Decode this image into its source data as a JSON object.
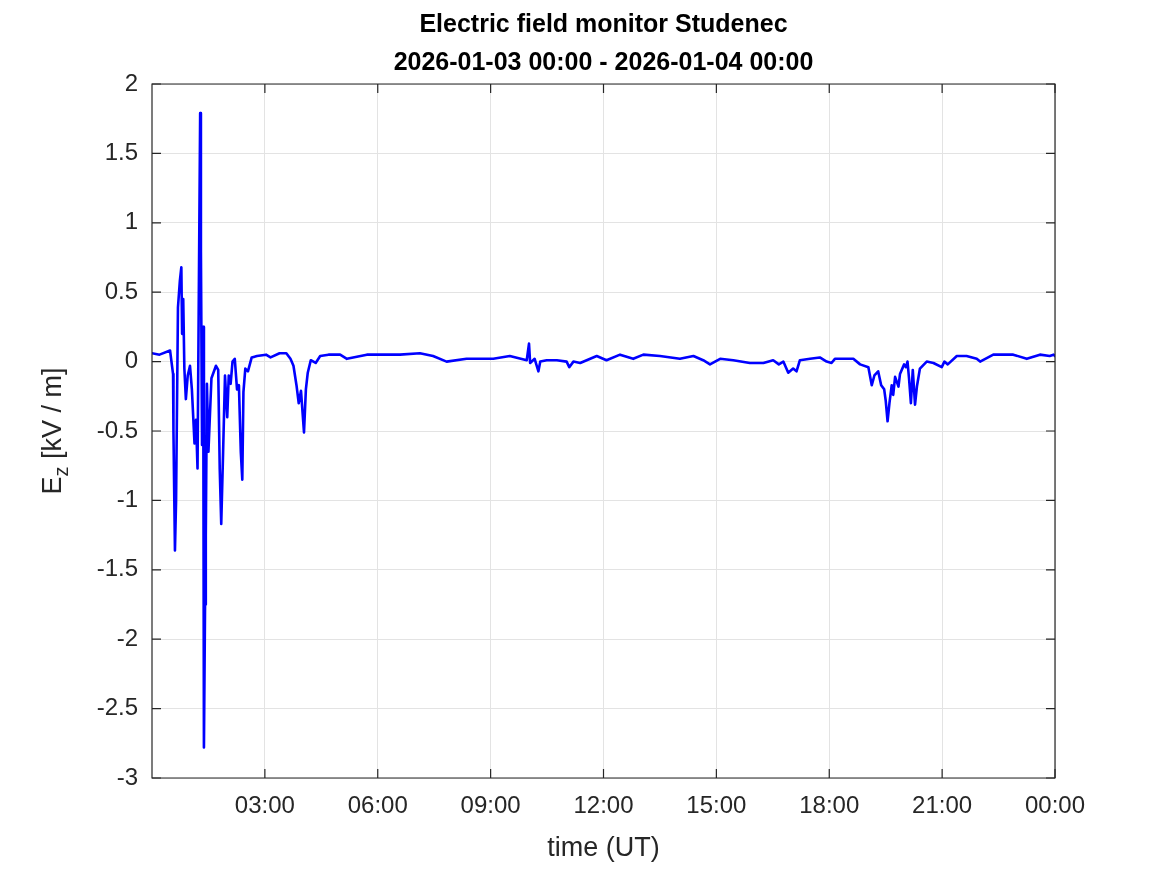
{
  "chart_data": {
    "type": "line",
    "title": "Electric field monitor Studenec",
    "subtitle": "2026-01-03 00:00 - 2026-01-04 00:00",
    "xlabel": "time (UT)",
    "ylabel": "E$_{z}$ [kV / m]",
    "x": [
      0,
      0.2,
      0.48,
      0.56,
      0.57,
      0.61,
      0.64,
      0.69,
      0.74,
      0.78,
      0.8,
      0.83,
      0.86,
      0.9,
      0.95,
      1.01,
      1.06,
      1.13,
      1.17,
      1.21,
      1.28,
      1.3,
      1.33,
      1.36,
      1.38,
      1.41,
      1.43,
      1.46,
      1.5,
      1.58,
      1.7,
      1.76,
      1.8,
      1.84,
      1.89,
      1.94,
      2,
      2.04,
      2.09,
      2.14,
      2.2,
      2.26,
      2.31,
      2.36,
      2.4,
      2.43,
      2.48,
      2.55,
      2.65,
      2.79,
      3.03,
      3.15,
      3.39,
      3.57,
      3.68,
      3.76,
      3.84,
      3.9,
      3.96,
      4.04,
      4.09,
      4.14,
      4.22,
      4.35,
      4.47,
      4.69,
      5,
      5.18,
      5.71,
      6.59,
      7.12,
      7.47,
      7.83,
      8.36,
      9.07,
      9.51,
      9.96,
      10.02,
      10.05,
      10.17,
      10.27,
      10.32,
      10.49,
      10.76,
      11.02,
      11.09,
      11.2,
      11.38,
      11.82,
      12.08,
      12.44,
      12.79,
      13.06,
      13.5,
      14.03,
      14.39,
      14.65,
      14.83,
      15.1,
      15.45,
      15.89,
      16.25,
      16.51,
      16.66,
      16.78,
      16.91,
      17.04,
      17.13,
      17.22,
      17.49,
      17.75,
      17.93,
      18.06,
      18.15,
      18.64,
      18.82,
      19.04,
      19.13,
      19.2,
      19.3,
      19.38,
      19.46,
      19.5,
      19.55,
      19.6,
      19.66,
      19.7,
      19.75,
      19.84,
      19.88,
      19.99,
      20.04,
      20.08,
      20.12,
      20.17,
      20.22,
      20.28,
      20.33,
      20.41,
      20.59,
      20.77,
      20.99,
      21.06,
      21.15,
      21.39,
      21.65,
      21.92,
      22.01,
      22.36,
      22.89,
      23.25,
      23.6,
      23.86,
      23.96,
      24
    ],
    "values": [
      0.06,
      0.05,
      0.08,
      -0.09,
      -0.5,
      -1.36,
      -1.0,
      0.39,
      0.58,
      0.68,
      0.2,
      0.45,
      -0.05,
      -0.27,
      -0.1,
      -0.03,
      -0.2,
      -0.59,
      -0.42,
      -0.77,
      1.79,
      0.8,
      -0.6,
      0.25,
      -2.78,
      -1.75,
      -1.25,
      -0.16,
      -0.65,
      -0.12,
      -0.03,
      -0.06,
      -0.77,
      -1.17,
      -0.65,
      -0.1,
      -0.4,
      -0.1,
      -0.16,
      0.0,
      0.02,
      -0.2,
      -0.17,
      -0.65,
      -0.85,
      -0.22,
      -0.05,
      -0.07,
      0.03,
      0.04,
      0.05,
      0.03,
      0.06,
      0.06,
      0.02,
      -0.03,
      -0.17,
      -0.3,
      -0.21,
      -0.51,
      -0.2,
      -0.08,
      0.01,
      -0.01,
      0.04,
      0.05,
      0.05,
      0.02,
      0.05,
      0.05,
      0.06,
      0.04,
      0.0,
      0.02,
      0.02,
      0.04,
      0.01,
      0.13,
      -0.01,
      0.02,
      -0.07,
      0.0,
      0.01,
      0.01,
      0.0,
      -0.04,
      0.0,
      -0.01,
      0.04,
      0.01,
      0.05,
      0.02,
      0.05,
      0.04,
      0.02,
      0.04,
      0.01,
      -0.02,
      0.02,
      0.01,
      -0.01,
      -0.01,
      0.01,
      -0.02,
      0.0,
      -0.08,
      -0.05,
      -0.07,
      0.01,
      0.02,
      0.03,
      0.0,
      -0.01,
      0.02,
      0.02,
      -0.02,
      -0.04,
      -0.17,
      -0.1,
      -0.07,
      -0.17,
      -0.2,
      -0.28,
      -0.43,
      -0.3,
      -0.17,
      -0.24,
      -0.11,
      -0.18,
      -0.09,
      -0.02,
      -0.04,
      0.0,
      -0.12,
      -0.3,
      -0.06,
      -0.31,
      -0.18,
      -0.05,
      0.0,
      -0.01,
      -0.04,
      0.0,
      -0.02,
      0.04,
      0.04,
      0.02,
      0.0,
      0.05,
      0.05,
      0.02,
      0.05,
      0.04,
      0.05,
      0.04
    ],
    "color": "#0000ff",
    "line_style": "solid",
    "xlim": [
      0,
      24
    ],
    "xticks": [
      {
        "value": 3,
        "label": "03:00"
      },
      {
        "value": 6,
        "label": "06:00"
      },
      {
        "value": 9,
        "label": "09:00"
      },
      {
        "value": 12,
        "label": "12:00"
      },
      {
        "value": 15,
        "label": "15:00"
      },
      {
        "value": 18,
        "label": "18:00"
      },
      {
        "value": 21,
        "label": "21:00"
      },
      {
        "value": 24,
        "label": "00:00"
      }
    ],
    "ylim": [
      -3,
      2
    ],
    "yticks": [
      -3,
      -2.5,
      -2,
      -1.5,
      -1,
      -0.5,
      0,
      0.5,
      1,
      1.5,
      2
    ],
    "grid": true
  }
}
